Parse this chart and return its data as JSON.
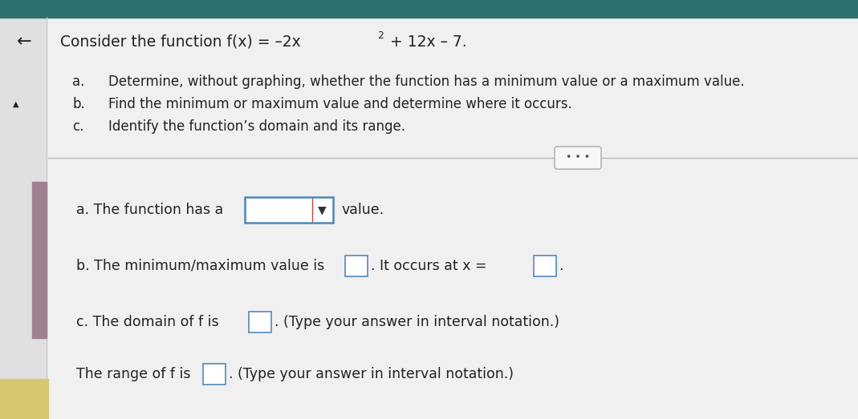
{
  "bg_color": "#e8e8e8",
  "content_bg": "#eeeeee",
  "teal_bar_color": "#2d7070",
  "left_bar_color": "#9e8090",
  "text_color": "#222222",
  "separator_color": "#bbbbbb",
  "dropdown_border": "#4a88bb",
  "small_box_border": "#5588bb",
  "dots_border": "#aaaaaa",
  "title_prefix": "Consider the function f(x) = –2x",
  "title_sup": "2",
  "title_suffix": " + 12x – 7.",
  "item_a_label": "a.",
  "item_b_label": "b.",
  "item_c_label": "c.",
  "item_a_text": "Determine, without graphing, whether the function has a minimum value or a maximum value.",
  "item_b_text": "Find the minimum or maximum value and determine where it occurs.",
  "item_c_text": "Identify the function’s domain and its range.",
  "ans_a_prefix": "a. The function has a",
  "ans_a_suffix": "value.",
  "ans_b_prefix": "b. The minimum/maximum value is",
  "ans_b_mid": ". It occurs at x =",
  "ans_b_suffix": ".",
  "ans_c1_prefix": "c. The domain of f is",
  "ans_c1_suffix": ". (Type your answer in interval notation.)",
  "ans_c2_prefix": "The range of f is",
  "ans_c2_suffix": ". (Type your answer in interval notation.)",
  "dots_text": "• • •"
}
